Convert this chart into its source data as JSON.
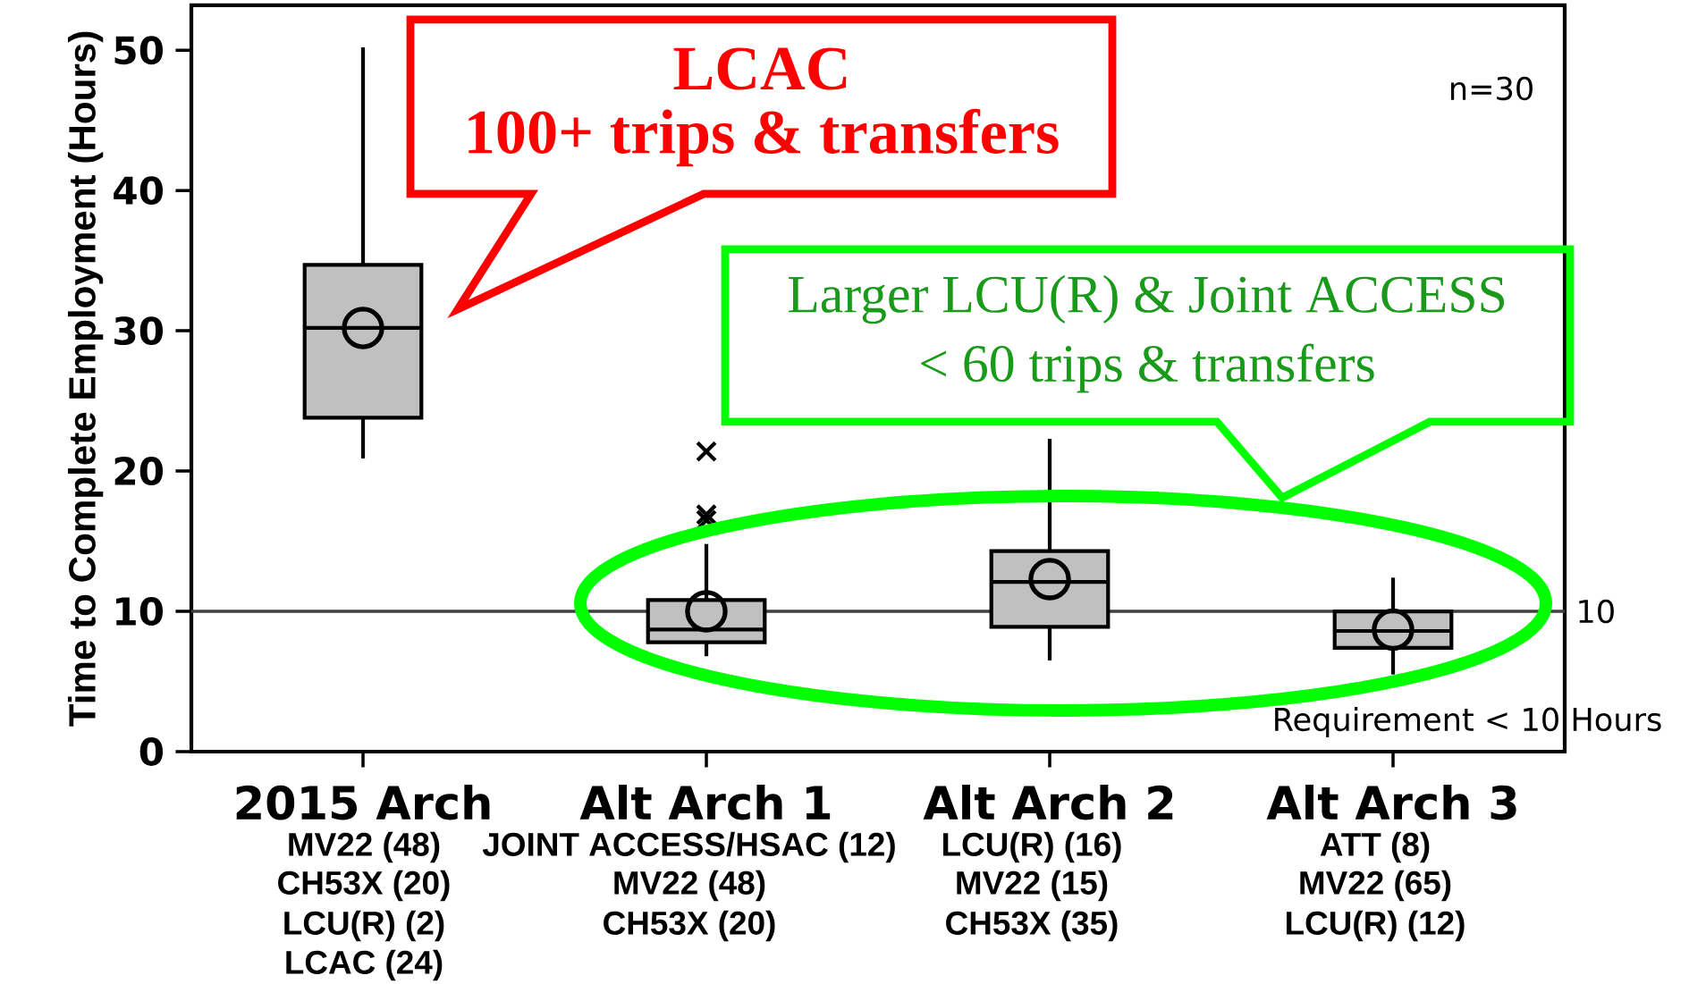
{
  "chart_data": {
    "type": "box",
    "ylabel": "Time to Complete Employment (Hours)",
    "categories": [
      "2015 Arch",
      "Alt Arch 1",
      "Alt Arch 2",
      "Alt Arch 3"
    ],
    "color": "#c0c0c0",
    "boxes": [
      {
        "low": 20.9,
        "q1": 23.8,
        "median": 30.2,
        "q3": 34.7,
        "high": 50.2,
        "mean": 30.2
      },
      {
        "low": 6.8,
        "q1": 7.8,
        "median": 8.7,
        "q3": 10.8,
        "high": 14.8,
        "mean": 10.0,
        "outliers": [
          16.5,
          16.9,
          21.4
        ]
      },
      {
        "low": 6.5,
        "q1": 8.9,
        "median": 12.1,
        "q3": 14.3,
        "high": 22.3,
        "mean": 12.3
      },
      {
        "low": 5.5,
        "q1": 7.4,
        "median": 8.6,
        "q3": 10.0,
        "high": 12.4,
        "mean": 8.7
      }
    ],
    "ylim": [
      0,
      53.2
    ],
    "yticks": [
      0,
      10,
      20,
      30,
      40,
      50
    ],
    "ref_lines": [
      {
        "axis": "y",
        "value": 10,
        "label": "10",
        "color": "#404040"
      }
    ],
    "annotations": [
      "n=30",
      "Requirement < 10 Hours",
      "LCAC",
      "100+ trips & transfers",
      "Larger LCU(R) & Joint ACCESS",
      "< 60 trips & transfers",
      "MV22 (48)",
      "CH53X (20)",
      "LCU(R) (2)",
      "LCAC (24)",
      "JOINT ACCESS/HSAC (12)",
      "MV22 (48)",
      "CH53X (20)",
      "LCU(R) (16)",
      "MV22 (15)",
      "CH53X (35)",
      "ATT (8)",
      "MV22 (65)",
      "LCU(R) (12)"
    ]
  }
}
